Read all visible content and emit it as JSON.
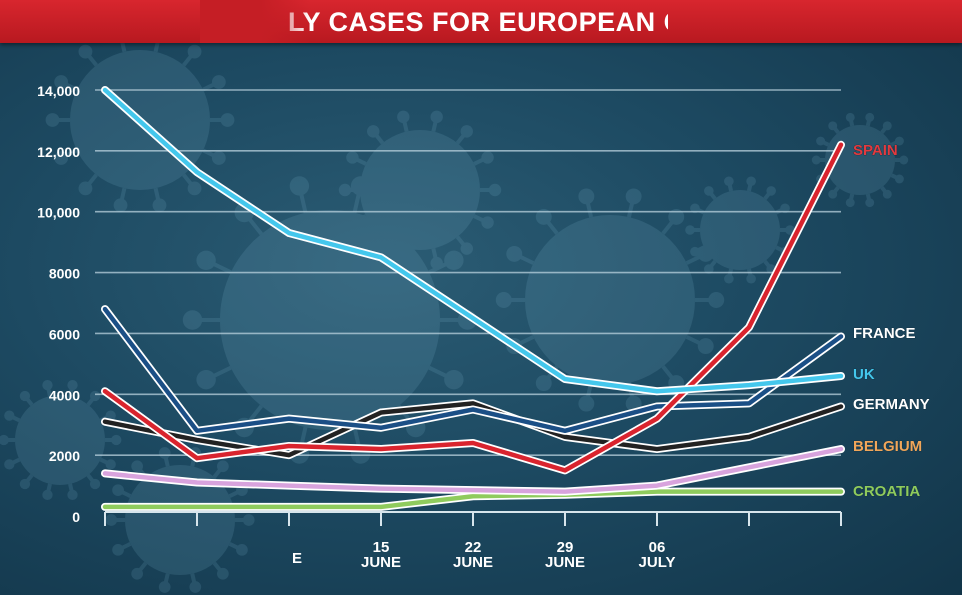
{
  "header": {
    "title": "LY CASES FOR EUROPEAN CO",
    "bar_color": "#c8202a"
  },
  "chart_data": {
    "type": "line",
    "title": "LY CASES FOR EUROPEAN CO",
    "xlabel": "",
    "ylabel": "",
    "ylim": [
      0,
      14000
    ],
    "y_ticks": [
      0,
      2000,
      4000,
      6000,
      8000,
      10000,
      12000,
      14000
    ],
    "y_tick_labels": [
      "0",
      "2000",
      "4000",
      "6000",
      "8000",
      "10,000",
      "12,000",
      "14,000"
    ],
    "x_ticks": [
      {
        "top": "",
        "bottom": "E"
      },
      {
        "top": "15",
        "bottom": "JUNE"
      },
      {
        "top": "22",
        "bottom": "JUNE"
      },
      {
        "top": "29",
        "bottom": "JUNE"
      },
      {
        "top": "06",
        "bottom": "JULY"
      }
    ],
    "grid": true,
    "legend": "right, at line ends",
    "series": [
      {
        "name": "SPAIN",
        "color": "#d9242e",
        "values": [
          4100,
          1900,
          2300,
          2200,
          2400,
          1500,
          3200,
          6200,
          12200
        ]
      },
      {
        "name": "FRANCE",
        "color": "#1b4f86",
        "values": [
          6800,
          2800,
          3200,
          2900,
          3500,
          2800,
          3600,
          3700,
          5900
        ]
      },
      {
        "name": "UK",
        "color": "#44c7ec",
        "values": [
          14000,
          11300,
          9300,
          8500,
          6500,
          4500,
          4100,
          4300,
          4600
        ]
      },
      {
        "name": "GERMANY",
        "color": "#222222",
        "values": [
          3100,
          2500,
          2000,
          3400,
          3700,
          2600,
          2200,
          2600,
          3600
        ]
      },
      {
        "name": "BELGIUM",
        "color": "#d8a3dd",
        "values": [
          1400,
          1100,
          1000,
          900,
          850,
          800,
          1000,
          1600,
          2200
        ]
      },
      {
        "name": "CROATIA",
        "color": "#8fcb5d",
        "values": [
          300,
          300,
          300,
          300,
          650,
          700,
          800,
          800,
          800
        ]
      }
    ],
    "legend_label_colors": {
      "SPAIN": "#e23a3f",
      "FRANCE": "#ffffff",
      "UK": "#44c7ec",
      "GERMANY": "#ffffff",
      "BELGIUM": "#f0a65a",
      "CROATIA": "#8fcb5d"
    }
  }
}
